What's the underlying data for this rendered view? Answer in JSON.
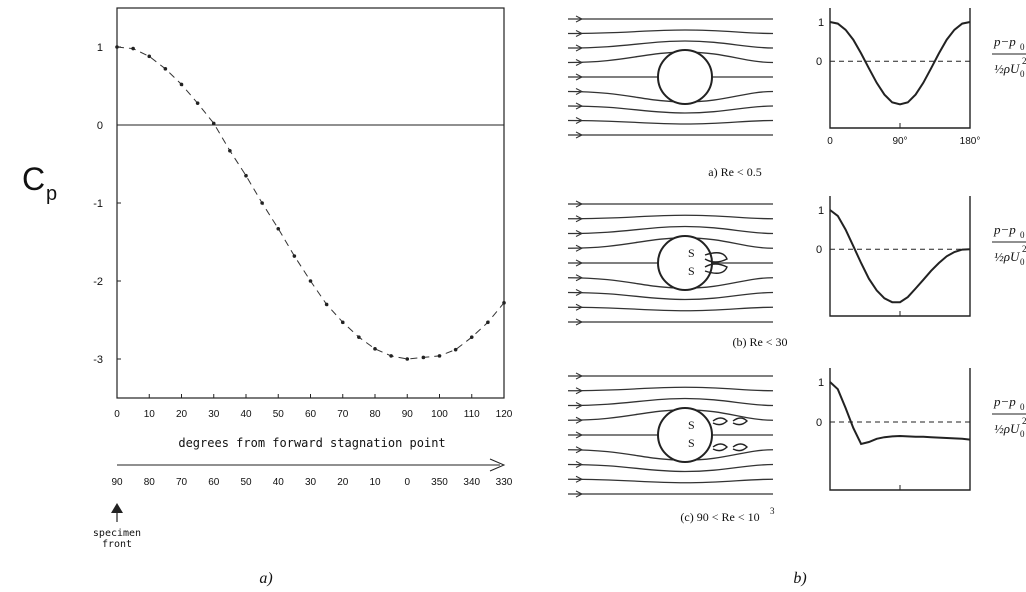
{
  "chart_data": [
    {
      "type": "line",
      "ylabel_main": "C",
      "ylabel_sub": "p",
      "xlabel": "degrees from forward stagnation point",
      "xlim": [
        0,
        120
      ],
      "ylim": [
        -3.5,
        1.5
      ],
      "x_ticks": [
        "0",
        "10",
        "20",
        "30",
        "40",
        "50",
        "60",
        "70",
        "80",
        "90",
        "100",
        "110",
        "120"
      ],
      "y_ticks": [
        "1",
        "0",
        "-1",
        "-2",
        "-3"
      ],
      "secondary_ticks": [
        "90",
        "80",
        "70",
        "60",
        "50",
        "40",
        "30",
        "20",
        "10",
        "0",
        "350",
        "340",
        "330"
      ],
      "marker_label": [
        "specimen",
        "front"
      ],
      "x": [
        0,
        5,
        10,
        15,
        20,
        25,
        30,
        35,
        40,
        45,
        50,
        55,
        60,
        65,
        70,
        75,
        80,
        85,
        90,
        95,
        100,
        105,
        110,
        115,
        120
      ],
      "y": [
        1.0,
        0.98,
        0.88,
        0.72,
        0.52,
        0.28,
        0.02,
        -0.33,
        -0.65,
        -1.0,
        -1.33,
        -1.68,
        -2.0,
        -2.3,
        -2.53,
        -2.72,
        -2.87,
        -2.96,
        -3.0,
        -2.98,
        -2.96,
        -2.88,
        -2.72,
        -2.53,
        -2.28
      ]
    },
    {
      "type": "line",
      "caption": "a) Re < 0.5",
      "x_ticks": [
        "0",
        "90°",
        "180°"
      ],
      "zero_label": "0",
      "one_label": "1",
      "x": [
        0,
        10,
        20,
        30,
        40,
        50,
        60,
        70,
        80,
        90,
        100,
        110,
        120,
        130,
        140,
        150,
        160,
        170,
        180
      ],
      "y": [
        1.0,
        0.96,
        0.8,
        0.55,
        0.2,
        -0.18,
        -0.55,
        -0.85,
        -1.05,
        -1.1,
        -1.05,
        -0.85,
        -0.55,
        -0.18,
        0.2,
        0.55,
        0.8,
        0.96,
        1.0
      ],
      "ylabel_num": "p−p",
      "ylabel_num_sub": "0",
      "ylabel_den": "½ρU",
      "ylabel_den_sub": "0"
    },
    {
      "type": "line",
      "caption": "(b) Re < 30",
      "zero_label": "0",
      "one_label": "1",
      "x": [
        0,
        10,
        20,
        30,
        40,
        50,
        60,
        70,
        80,
        90,
        100,
        110,
        120,
        130,
        140,
        150,
        160,
        170,
        180
      ],
      "y": [
        1.0,
        0.85,
        0.5,
        0.08,
        -0.35,
        -0.75,
        -1.05,
        -1.25,
        -1.35,
        -1.35,
        -1.22,
        -1.0,
        -0.78,
        -0.55,
        -0.35,
        -0.18,
        -0.07,
        -0.01,
        0.0
      ],
      "ylabel_num": "p−p",
      "ylabel_num_sub": "0",
      "ylabel_den": "½ρU",
      "ylabel_den_sub": "0"
    },
    {
      "type": "line",
      "caption": "(c) 90 < Re < 10",
      "caption_sup": "3",
      "zero_label": "0",
      "one_label": "1",
      "x": [
        0,
        10,
        20,
        30,
        40,
        50,
        60,
        70,
        80,
        90,
        100,
        110,
        120,
        130,
        140,
        150,
        160,
        170,
        180
      ],
      "y": [
        1.0,
        0.82,
        0.35,
        -0.15,
        -0.55,
        -0.5,
        -0.42,
        -0.38,
        -0.36,
        -0.35,
        -0.36,
        -0.37,
        -0.37,
        -0.38,
        -0.39,
        -0.4,
        -0.41,
        -0.42,
        -0.44
      ],
      "ylabel_num": "p−p",
      "ylabel_num_sub": "0",
      "ylabel_den": "½ρU",
      "ylabel_den_sub": "0"
    }
  ],
  "captions": {
    "left": "a)",
    "right": "b)"
  },
  "flow_sketches": [
    {
      "labels": []
    },
    {
      "labels": [
        "S",
        "S"
      ]
    },
    {
      "labels": [
        "S",
        "S"
      ]
    }
  ]
}
